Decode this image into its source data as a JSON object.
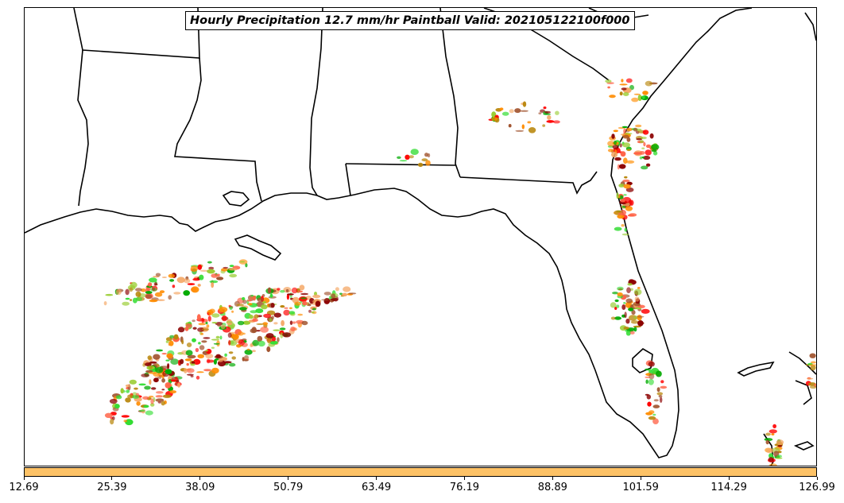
{
  "title": "Hourly Precipitation 12.7 mm/hr Paintball Valid: 202105122100f000",
  "colorbar": {
    "color": "#fdc266",
    "ticks": [
      "12.69",
      "25.39",
      "38.09",
      "50.79",
      "63.49",
      "76.19",
      "88.89",
      "101.59",
      "114.29",
      "126.99"
    ]
  },
  "map": {
    "region": "Gulf Coast and Florida",
    "features": [
      "coastline",
      "state-borders"
    ],
    "paintball_colors": [
      "#ff8c00",
      "#ff0000",
      "#8b0000",
      "#00aa00",
      "#33dd33",
      "#b8860b",
      "#a0522d",
      "#f4a460",
      "#ff6347",
      "#9acd32"
    ]
  }
}
